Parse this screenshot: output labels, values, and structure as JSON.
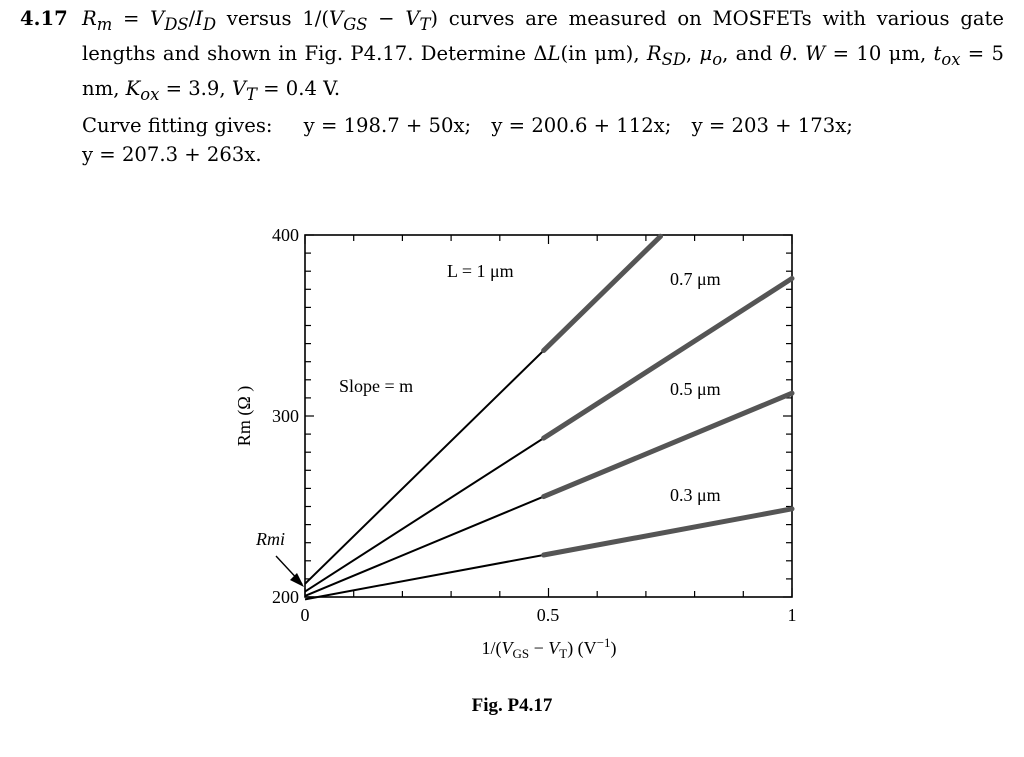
{
  "problem": {
    "number": "4.17",
    "statement_html": "<i>R<sub>m</sub></i> = <i>V<sub>DS</sub></i>/<i>I<sub>D</sub></i> versus 1/(<i>V<sub>GS</sub></i> − <i>V<sub>T</sub></i>) curves are measured on MOSFETs with various gate lengths and shown in Fig. P4.17. Determine Δ<i>L</i>(in μm), <i>R<sub>SD</sub></i>, <i>μ<sub>o</sub></i>, and <i>θ</i>. <i>W</i> = 10 μm, <i>t<sub>ox</sub></i> = 5 nm, <i>K<sub>ox</sub></i> = 3.9, <i>V<sub>T</sub></i> = 0.4 V.",
    "fit_intro": "Curve fitting gives:",
    "fits": [
      "y = 198.7 + 50x;",
      "y = 200.6 + 112x;",
      "y = 203 + 173x;",
      "y = 207.3 + 263x."
    ]
  },
  "chart_data": {
    "type": "line",
    "xlim": [
      0,
      1
    ],
    "ylim": [
      200,
      400
    ],
    "x_ticks": [
      "0",
      "0.5",
      "1"
    ],
    "y_ticks": [
      "200",
      "300",
      "400"
    ],
    "xlabel_html": "1/(<tspan font-style='italic'>V</tspan><tspan font-size='13' dy='4'>GS</tspan><tspan dy='-4'> − </tspan><tspan font-style='italic'>V</tspan><tspan font-size='13' dy='4'>T</tspan><tspan dy='-4'>) (V</tspan><tspan font-size='13' dy='-7'>−1</tspan><tspan dy='7'>)</tspan>",
    "ylabel": "Rm (Ω )",
    "series": [
      {
        "name": "L = 1 μm",
        "intercept": 207.3,
        "slope": 263,
        "data_x": [
          0.49,
          0.73
        ]
      },
      {
        "name": "0.7 μm",
        "intercept": 203,
        "slope": 173,
        "data_x": [
          0.49,
          1.0
        ]
      },
      {
        "name": "0.5 μm",
        "intercept": 200.6,
        "slope": 112,
        "data_x": [
          0.49,
          1.0
        ]
      },
      {
        "name": "0.3 μm",
        "intercept": 198.7,
        "slope": 50,
        "data_x": [
          0.49,
          1.0
        ]
      }
    ],
    "annotations": {
      "slope": "Slope = m",
      "rmi": "Rmi"
    }
  },
  "caption": "Fig. P4.17"
}
